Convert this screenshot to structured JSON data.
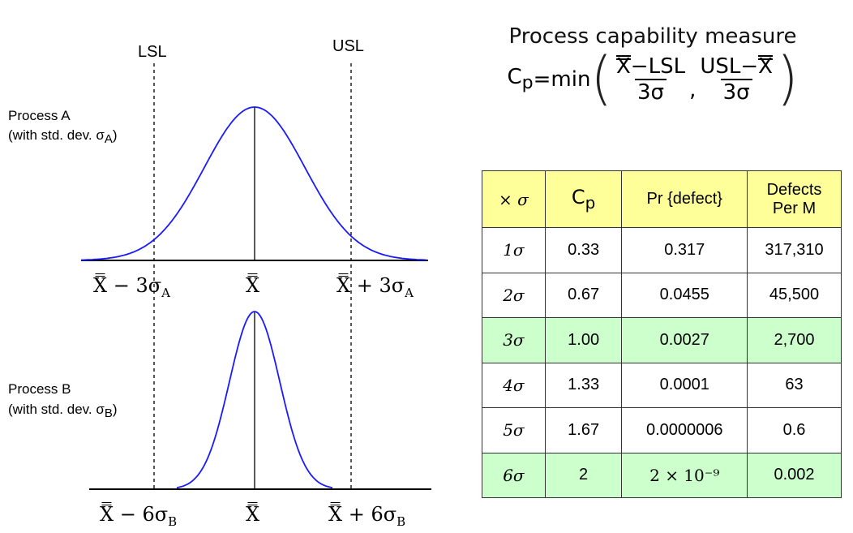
{
  "labels": {
    "lsl": "LSL",
    "usl": "USL",
    "process_a_line1": "Process A",
    "process_a_line2": "(with std. dev. σ",
    "process_a_sub": "A",
    "process_b_line1": "Process B",
    "process_b_line2": "(with std. dev. σ",
    "process_b_sub": "B",
    "close_paren": ")",
    "xbar_minus_3sa": "X̿ − 3σ",
    "xbar_center_a": "X̿",
    "xbar_plus_3sa": "X̿ + 3σ",
    "sub_a": "A",
    "xbar_minus_6sb": "X̿ − 6σ",
    "xbar_center_b": "X̿",
    "xbar_plus_6sb": "X̿ + 6σ",
    "sub_b": "B"
  },
  "formula": {
    "title": "Process capability measure",
    "lhs": "C",
    "lhs_sub": "p",
    "eq": "=min",
    "num1_x": "X",
    "num1_rest": "−LSL",
    "den1": "3σ",
    "comma": ",",
    "num2_a": "USL−",
    "num2_x": "X",
    "den2": "3σ"
  },
  "table": {
    "headers": [
      "× σ",
      "C",
      "p",
      "Pr {defect}",
      "Defects",
      "Per M"
    ],
    "rows": [
      {
        "sigma": "1σ",
        "cp": "0.33",
        "pr": "0.317",
        "dpm": "317,310",
        "highlight": false
      },
      {
        "sigma": "2σ",
        "cp": "0.67",
        "pr": "0.0455",
        "dpm": "45,500",
        "highlight": false
      },
      {
        "sigma": "3σ",
        "cp": "1.00",
        "pr": "0.0027",
        "dpm": "2,700",
        "highlight": true
      },
      {
        "sigma": "4σ",
        "cp": "1.33",
        "pr": "0.0001",
        "dpm": "63",
        "highlight": false
      },
      {
        "sigma": "5σ",
        "cp": "1.67",
        "pr": "0.0000006",
        "dpm": "0.6",
        "highlight": false
      },
      {
        "sigma": "6σ",
        "cp": "2",
        "pr": "2 × 10⁻⁹",
        "dpm": "0.002",
        "highlight": true
      }
    ]
  },
  "colors": {
    "curve": "#1a1aff",
    "header_bg": "#ffff99",
    "highlight_bg": "#ccffcc"
  }
}
